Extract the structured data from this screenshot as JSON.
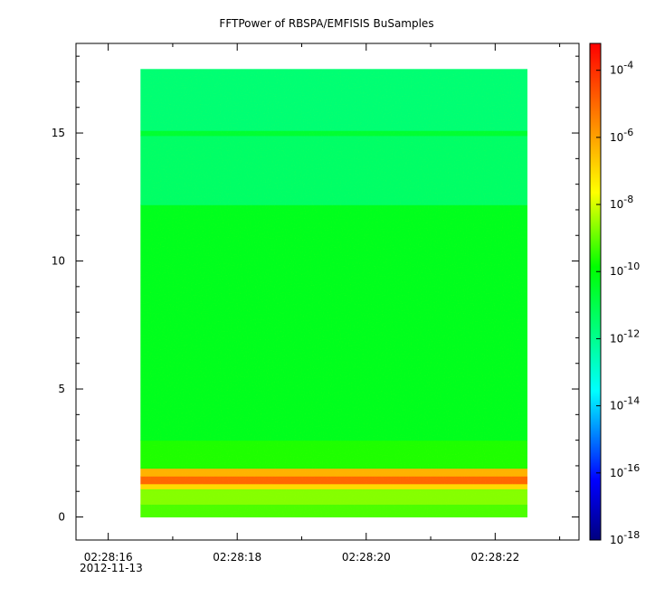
{
  "chart_data": {
    "type": "heatmap",
    "title": "FFTPower of RBSPA/EMFISIS  BuSamples",
    "xlabel": "",
    "ylabel": "",
    "x_tick_labels": [
      "02:28:16",
      "02:28:18",
      "02:28:20",
      "02:28:22"
    ],
    "x_tick_values_s": [
      16,
      18,
      20,
      22
    ],
    "x_date_label": "2012-11-13",
    "xlim_s": [
      15.5,
      23.3
    ],
    "data_extent_x_s": [
      16.5,
      22.5
    ],
    "ylim": [
      -0.9,
      18.5
    ],
    "data_extent_y": [
      0,
      17.5
    ],
    "y_ticks": [
      0,
      5,
      10,
      15
    ],
    "colorbar": {
      "scale": "log",
      "range_exponents": [
        -18,
        -3.2
      ],
      "tick_exponents": [
        -4,
        -6,
        -8,
        -10,
        -12,
        -14,
        -16,
        -18
      ],
      "tick_labels": [
        "10^-4",
        "10^-6",
        "10^-8",
        "10^-10",
        "10^-12",
        "10^-14",
        "10^-16",
        "10^-18"
      ]
    },
    "bands_log10_power": [
      {
        "y_from": 0.0,
        "y_to": 0.5,
        "log10_power": -9.2
      },
      {
        "y_from": 0.5,
        "y_to": 1.1,
        "log10_power": -8.7
      },
      {
        "y_from": 1.1,
        "y_to": 1.3,
        "log10_power": -7.0
      },
      {
        "y_from": 1.3,
        "y_to": 1.6,
        "log10_power": -5.0
      },
      {
        "y_from": 1.6,
        "y_to": 1.9,
        "log10_power": -6.3
      },
      {
        "y_from": 1.9,
        "y_to": 3.0,
        "log10_power": -9.6
      },
      {
        "y_from": 3.0,
        "y_to": 12.2,
        "log10_power": -10.3
      },
      {
        "y_from": 12.2,
        "y_to": 14.9,
        "log10_power": -11.4
      },
      {
        "y_from": 14.9,
        "y_to": 15.1,
        "log10_power": -10.6
      },
      {
        "y_from": 15.1,
        "y_to": 17.5,
        "log10_power": -11.6
      }
    ]
  }
}
